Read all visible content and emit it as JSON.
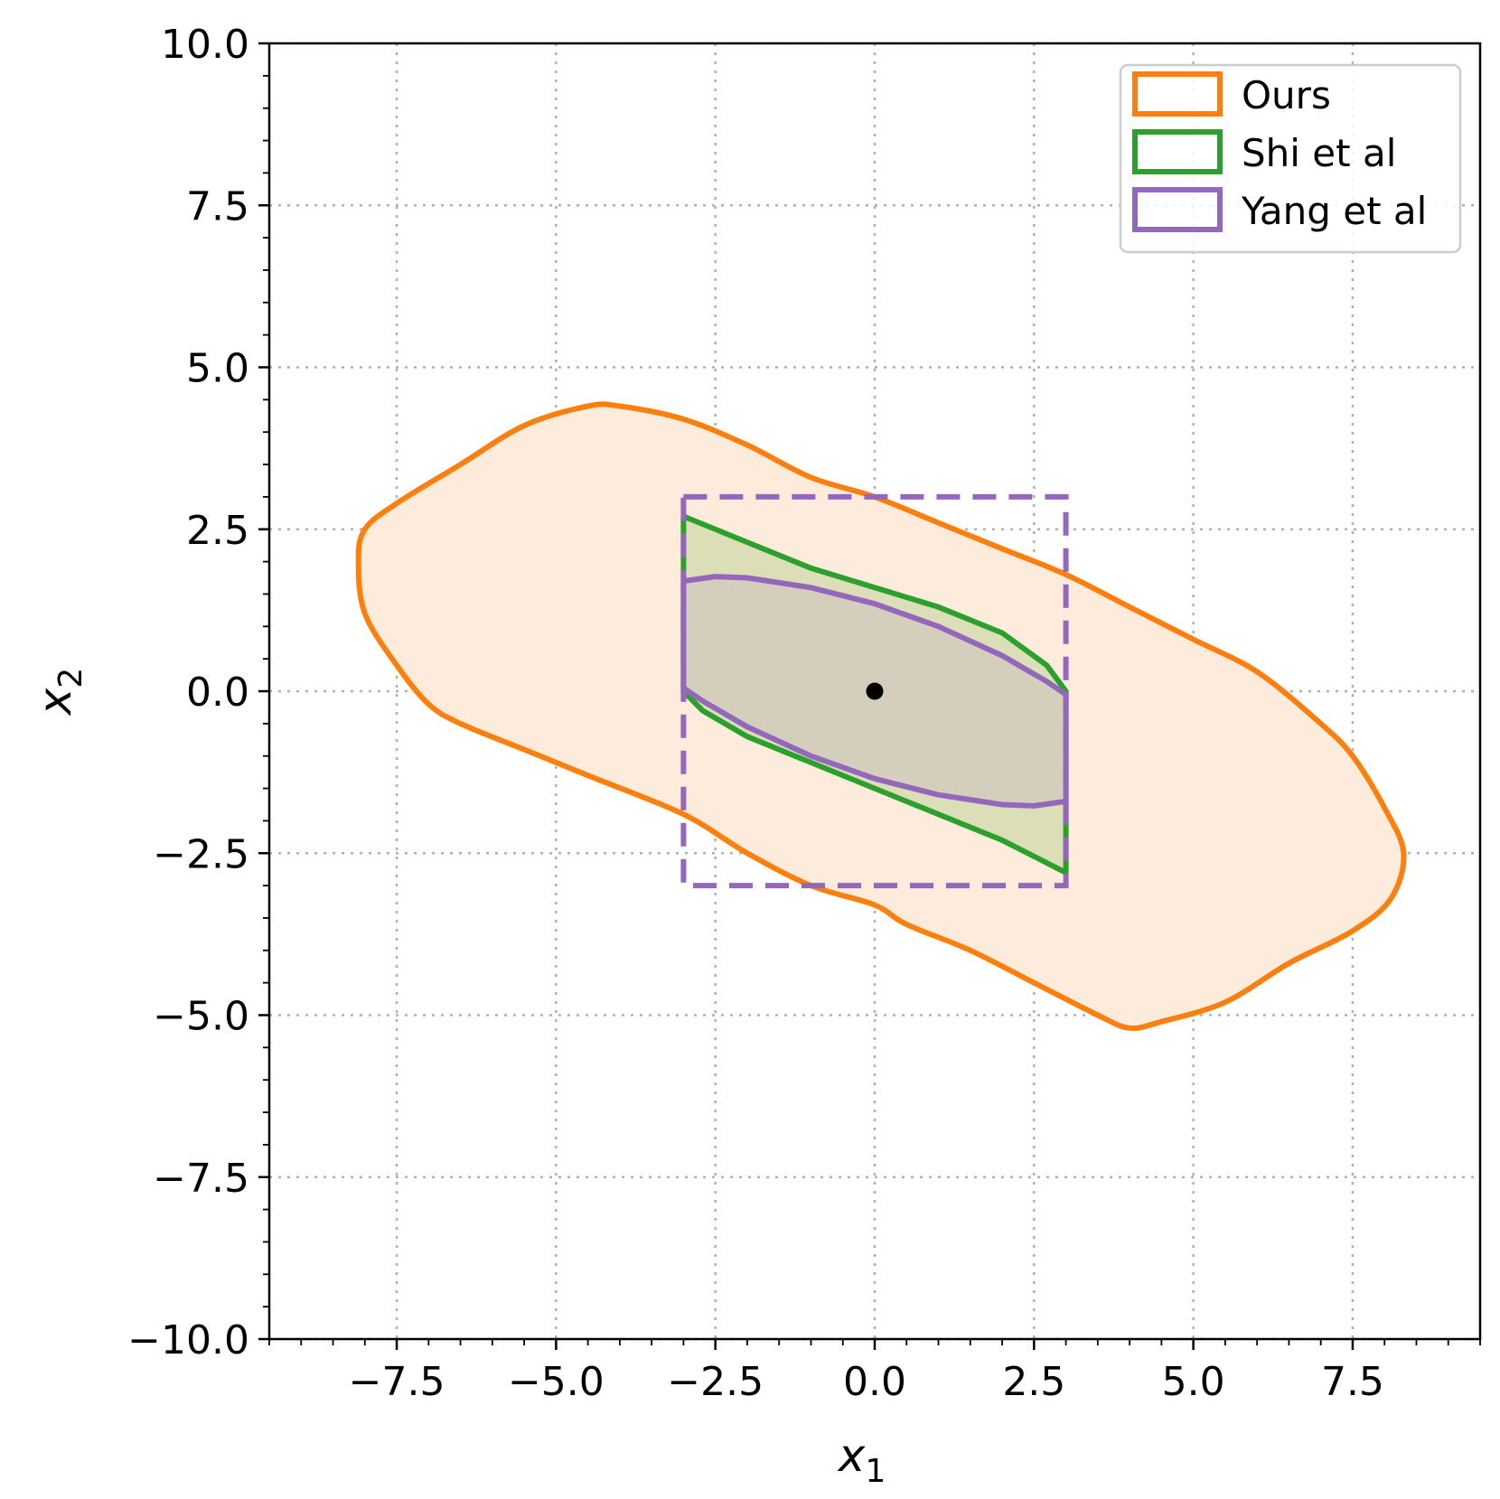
{
  "chart_data": {
    "type": "area",
    "xlabel": "x",
    "xlabel_sub": "1",
    "ylabel": "x",
    "ylabel_sub": "2",
    "xlim": [
      -9.5,
      9.5
    ],
    "ylim": [
      -10,
      10
    ],
    "xticks": [
      -7.5,
      -5.0,
      -2.5,
      0.0,
      2.5,
      5.0,
      7.5
    ],
    "yticks": [
      -10.0,
      -7.5,
      -5.0,
      -2.5,
      0.0,
      2.5,
      5.0,
      7.5,
      10.0
    ],
    "xtick_labels": [
      "−7.5",
      "−5.0",
      "−2.5",
      "0.0",
      "2.5",
      "5.0",
      "7.5"
    ],
    "ytick_labels": [
      "−10.0",
      "−7.5",
      "−5.0",
      "−2.5",
      "0.0",
      "2.5",
      "5.0",
      "7.5",
      "10.0"
    ],
    "grid": true,
    "legend_position": "top-right",
    "series": [
      {
        "name": "Ours",
        "color": "#ff7f0e",
        "fill": "#fdebdb",
        "style": "solid",
        "points": [
          [
            -8.1,
            2.0
          ],
          [
            -8.0,
            2.5
          ],
          [
            -7.5,
            2.9
          ],
          [
            -6.5,
            3.5
          ],
          [
            -5.5,
            4.1
          ],
          [
            -4.5,
            4.4
          ],
          [
            -4.0,
            4.4
          ],
          [
            -3.0,
            4.2
          ],
          [
            -2.0,
            3.8
          ],
          [
            -1.0,
            3.3
          ],
          [
            0.0,
            3.0
          ],
          [
            1.0,
            2.6
          ],
          [
            2.0,
            2.2
          ],
          [
            3.0,
            1.8
          ],
          [
            4.0,
            1.3
          ],
          [
            5.0,
            0.8
          ],
          [
            6.0,
            0.3
          ],
          [
            7.0,
            -0.5
          ],
          [
            7.5,
            -1.0
          ],
          [
            8.0,
            -1.8
          ],
          [
            8.3,
            -2.5
          ],
          [
            8.1,
            -3.2
          ],
          [
            7.5,
            -3.7
          ],
          [
            6.5,
            -4.2
          ],
          [
            5.5,
            -4.8
          ],
          [
            4.5,
            -5.1
          ],
          [
            4.0,
            -5.2
          ],
          [
            3.5,
            -5.0
          ],
          [
            2.5,
            -4.5
          ],
          [
            1.5,
            -4.0
          ],
          [
            0.5,
            -3.6
          ],
          [
            0.0,
            -3.3
          ],
          [
            -1.0,
            -3.0
          ],
          [
            -2.0,
            -2.5
          ],
          [
            -3.0,
            -1.9
          ],
          [
            -4.5,
            -1.3
          ],
          [
            -5.5,
            -0.9
          ],
          [
            -6.5,
            -0.5
          ],
          [
            -7.0,
            -0.2
          ],
          [
            -7.5,
            0.4
          ],
          [
            -8.0,
            1.2
          ]
        ]
      },
      {
        "name": "Shi et al",
        "color": "#2ca02c",
        "fill": "#cfd9ab",
        "style": "solid",
        "points": [
          [
            -3.0,
            2.7
          ],
          [
            -2.0,
            2.3
          ],
          [
            -1.0,
            1.9
          ],
          [
            0.0,
            1.6
          ],
          [
            1.0,
            1.3
          ],
          [
            2.0,
            0.9
          ],
          [
            2.7,
            0.4
          ],
          [
            3.0,
            0.0
          ],
          [
            3.0,
            -2.8
          ],
          [
            2.0,
            -2.3
          ],
          [
            1.0,
            -1.9
          ],
          [
            0.0,
            -1.5
          ],
          [
            -1.0,
            -1.1
          ],
          [
            -2.0,
            -0.7
          ],
          [
            -2.7,
            -0.3
          ],
          [
            -3.0,
            0.0
          ]
        ]
      },
      {
        "name": "Yang et al",
        "color": "#9467bd",
        "fill": "#d2cabd",
        "style": "solid",
        "points": [
          [
            -3.0,
            1.7
          ],
          [
            -2.5,
            1.77
          ],
          [
            -2.0,
            1.75
          ],
          [
            -1.0,
            1.6
          ],
          [
            0.0,
            1.35
          ],
          [
            1.0,
            1.0
          ],
          [
            2.0,
            0.55
          ],
          [
            2.7,
            0.15
          ],
          [
            3.0,
            -0.05
          ],
          [
            3.0,
            -1.7
          ],
          [
            2.5,
            -1.77
          ],
          [
            2.0,
            -1.75
          ],
          [
            1.0,
            -1.6
          ],
          [
            0.0,
            -1.35
          ],
          [
            -1.0,
            -1.0
          ],
          [
            -2.0,
            -0.55
          ],
          [
            -2.7,
            -0.15
          ],
          [
            -3.0,
            0.05
          ]
        ]
      },
      {
        "name": "",
        "color": "#9467bd",
        "style": "dashed",
        "points": [
          [
            -3.0,
            3.0
          ],
          [
            3.0,
            3.0
          ],
          [
            3.0,
            -3.0
          ],
          [
            -3.0,
            -3.0
          ]
        ]
      }
    ],
    "center_point": {
      "x": 0.0,
      "y": 0.0,
      "color": "#000000"
    },
    "legend": [
      {
        "label": "Ours",
        "color": "#ff7f0e"
      },
      {
        "label": "Shi et al",
        "color": "#2ca02c"
      },
      {
        "label": "Yang et al",
        "color": "#9467bd"
      }
    ]
  }
}
